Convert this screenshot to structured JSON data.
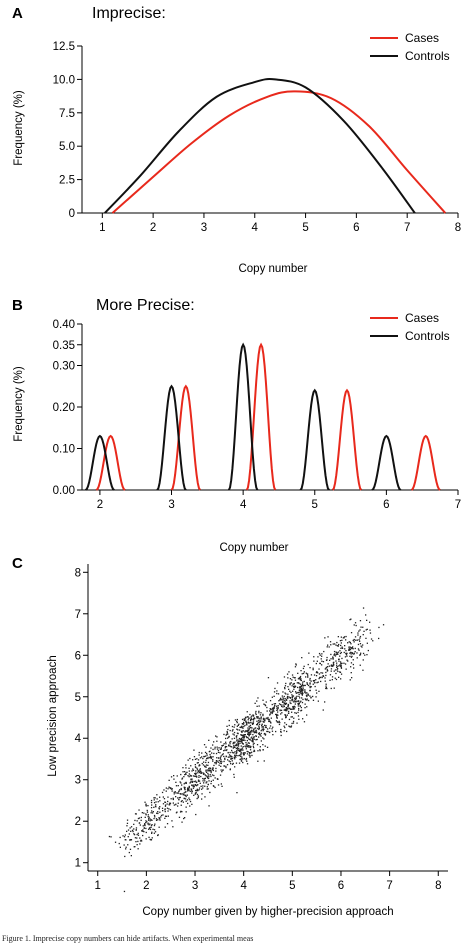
{
  "figure": {
    "caption": "Figure 1. Imprecise copy numbers can hide artifacts. When experimental meas"
  },
  "chart_data": [
    {
      "panel": "A",
      "type": "line",
      "title": "Imprecise:",
      "xlabel": "Copy number",
      "ylabel": "Frequency (%)",
      "xlim": [
        0.6,
        8
      ],
      "ylim": [
        0,
        12.5
      ],
      "xticks": [
        1,
        2,
        3,
        4,
        5,
        6,
        7,
        8
      ],
      "yticks": [
        0,
        2.5,
        5.0,
        7.5,
        10.0,
        12.5
      ],
      "ytick_labels": [
        "0",
        "2.5",
        "5.0",
        "7.5",
        "10.0",
        "12.5"
      ],
      "legend_position": "top-right",
      "grid": false,
      "series": [
        {
          "name": "Cases",
          "color": "#e8291c",
          "x": [
            1.2,
            2.0,
            2.75,
            3.5,
            4.25,
            4.8,
            5.5,
            6.25,
            7.0,
            7.75
          ],
          "values": [
            0.0,
            2.7,
            5.2,
            7.3,
            8.7,
            9.1,
            8.6,
            6.5,
            3.2,
            0.0
          ]
        },
        {
          "name": "Controls",
          "color": "#111111",
          "x": [
            1.05,
            1.75,
            2.5,
            3.25,
            4.0,
            4.4,
            5.0,
            5.75,
            6.5,
            7.15
          ],
          "values": [
            0.0,
            2.8,
            6.1,
            8.7,
            9.8,
            10.0,
            9.4,
            6.9,
            3.4,
            0.0
          ]
        }
      ]
    },
    {
      "panel": "B",
      "type": "line",
      "title": "More Precise:",
      "xlabel": "Copy number",
      "ylabel": "Frequency (%)",
      "xlim": [
        1.75,
        7
      ],
      "ylim": [
        0,
        0.4
      ],
      "xticks": [
        2,
        3,
        4,
        5,
        6,
        7
      ],
      "yticks": [
        0,
        0.1,
        0.2,
        0.3,
        0.35,
        0.4
      ],
      "ytick_labels": [
        "0.00",
        "0.10",
        "0.20",
        "0.30",
        "0.35",
        "0.40"
      ],
      "legend_position": "top-right",
      "grid": false,
      "series": [
        {
          "name": "Cases",
          "color": "#e8291c",
          "x": [
            2.15,
            3.2,
            4.25,
            5.45,
            6.55
          ],
          "values": [
            0.13,
            0.25,
            0.35,
            0.24,
            0.13
          ]
        },
        {
          "name": "Controls",
          "color": "#111111",
          "x": [
            2.0,
            3.0,
            4.0,
            5.0,
            6.0
          ],
          "values": [
            0.13,
            0.25,
            0.35,
            0.24,
            0.13
          ]
        }
      ]
    },
    {
      "panel": "C",
      "type": "scatter",
      "xlabel": "Copy number given by higher-precision approach",
      "ylabel": "Low precision approach",
      "xlim": [
        0.8,
        8.2
      ],
      "ylim": [
        0.8,
        8.2
      ],
      "xticks": [
        1,
        2,
        3,
        4,
        5,
        6,
        7,
        8
      ],
      "yticks": [
        1,
        2,
        3,
        4,
        5,
        6,
        7,
        8
      ],
      "grid": false,
      "clusters": [
        {
          "x": 2,
          "y": 2,
          "count": 200
        },
        {
          "x": 3,
          "y": 3,
          "count": 380
        },
        {
          "x": 4,
          "y": 4,
          "count": 520
        },
        {
          "x": 5,
          "y": 5,
          "count": 420
        },
        {
          "x": 6,
          "y": 6,
          "count": 260
        }
      ],
      "x_spread": 0.3,
      "y_spread": 0.4
    }
  ]
}
